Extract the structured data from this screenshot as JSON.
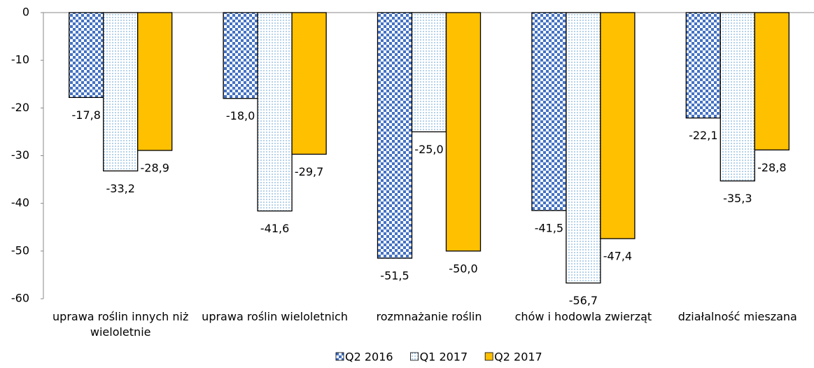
{
  "chart_data": {
    "type": "bar",
    "categories": [
      "uprawa roślin innych niż wieloletnie",
      "uprawa roślin wieloletnich",
      "rozmnażanie roślin",
      "chów i hodowla zwierząt",
      "działalność mieszana"
    ],
    "series": [
      {
        "name": "Q2 2016",
        "color": "#4472c4",
        "pattern": "checker",
        "values": [
          -17.8,
          -18.0,
          -51.5,
          -41.5,
          -22.1
        ],
        "value_labels": [
          "-17,8",
          "-18,0",
          "-51,5",
          "-41,5",
          "-22,1"
        ]
      },
      {
        "name": "Q1 2017",
        "color": "#5b9bd5",
        "pattern": "dots",
        "values": [
          -33.2,
          -41.6,
          -25.0,
          -56.7,
          -35.3
        ],
        "value_labels": [
          "-33,2",
          "-41,6",
          "-25,0",
          "-56,7",
          "-35,3"
        ]
      },
      {
        "name": "Q2 2017",
        "color": "#ffc000",
        "pattern": "solid",
        "values": [
          -28.9,
          -29.7,
          -50.0,
          -47.4,
          -28.8
        ],
        "value_labels": [
          "-28,9",
          "-29,7",
          "-50,0",
          "-47,4",
          "-28,8"
        ]
      }
    ],
    "ylim": [
      -60,
      0
    ],
    "yticks": [
      0,
      -10,
      -20,
      -30,
      -40,
      -50,
      -60
    ],
    "legend": "bottom"
  }
}
